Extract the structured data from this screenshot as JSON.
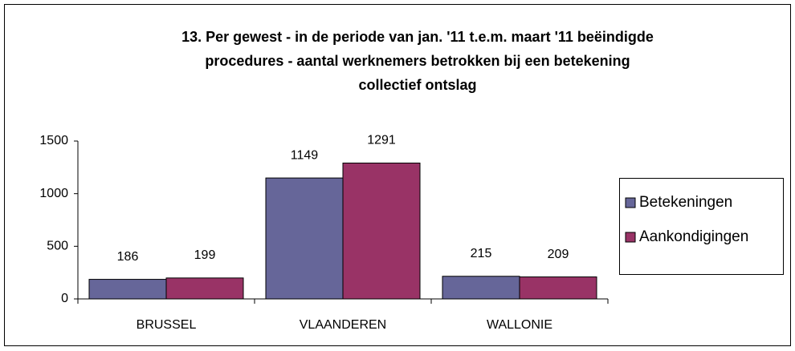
{
  "chart_data": {
    "type": "bar",
    "title": [
      "13. Per gewest - in de periode van jan. '11 t.e.m. maart '11 beëindigde",
      "procedures - aantal werknemers betrokken bij een betekening",
      "collectief ontslag"
    ],
    "categories": [
      "BRUSSEL",
      "VLAANDEREN",
      "WALLONIE"
    ],
    "series": [
      {
        "name": "Betekeningen",
        "color": "#666699",
        "values": [
          186,
          1149,
          215
        ]
      },
      {
        "name": "Aankondigingen",
        "color": "#993366",
        "values": [
          199,
          1291,
          209
        ]
      }
    ],
    "ylim": [
      0,
      1500
    ],
    "yticks": [
      0,
      500,
      1000,
      1500
    ],
    "grid": false,
    "legend": "right"
  }
}
